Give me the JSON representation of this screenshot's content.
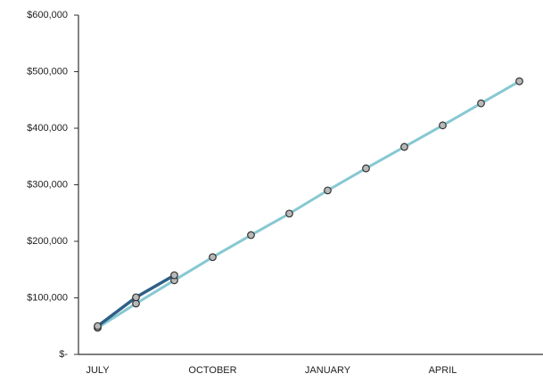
{
  "chart_data": {
    "type": "line",
    "categories": [
      "JULY",
      null,
      null,
      "OCTOBER",
      null,
      null,
      "JANUARY",
      null,
      null,
      "APRIL",
      null,
      null
    ],
    "series": [
      {
        "name": null,
        "color": "#86c8d2",
        "values": [
          47000,
          90000,
          131000,
          172000,
          211000,
          249000,
          290000,
          329000,
          367000,
          405000,
          444000,
          483000
        ]
      },
      {
        "name": null,
        "color": "#2f5f86",
        "values": [
          50000,
          101000,
          140000,
          null,
          null,
          null,
          null,
          null,
          null,
          null,
          null,
          null
        ]
      }
    ],
    "ylim": [
      0,
      600000
    ],
    "yticks": [
      {
        "value": 0,
        "label": "$-"
      },
      {
        "value": 100000,
        "label": "$100,000"
      },
      {
        "value": 200000,
        "label": "$200,000"
      },
      {
        "value": 300000,
        "label": "$300,000"
      },
      {
        "value": 400000,
        "label": "$400,000"
      },
      {
        "value": 500000,
        "label": "$500,000"
      },
      {
        "value": 600000,
        "label": "$600,000"
      }
    ],
    "grid": false
  }
}
